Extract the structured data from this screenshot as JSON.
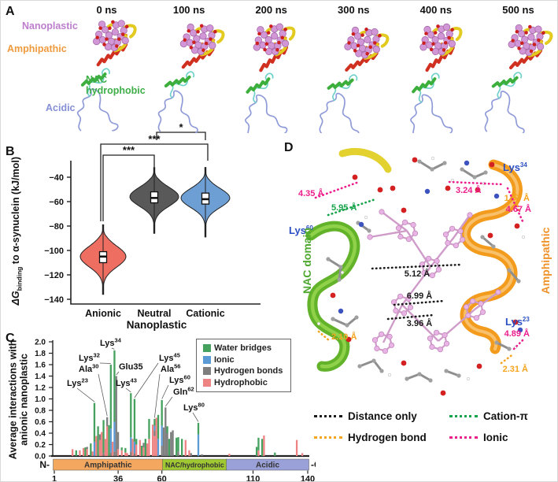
{
  "figure": {
    "panel_labels": [
      "A",
      "B",
      "C",
      "D"
    ]
  },
  "panel_a": {
    "times": [
      "0 ns",
      "100 ns",
      "200 ns",
      "300 ns",
      "400 ns",
      "500 ns"
    ],
    "region_labels": [
      {
        "text": "Nanoplastic",
        "color": "#bd7ecd"
      },
      {
        "text": "Amphipathic",
        "color": "#f09a3e"
      },
      {
        "text": "NAC hydrophobic",
        "color": "#3fae49"
      },
      {
        "text": "Acidic",
        "color": "#8590d6"
      }
    ]
  },
  "panel_b": {
    "ylabel": {
      "prefix": "ΔG",
      "sub": "binding",
      "rest": " to α-synuclein (kJ/mol)"
    },
    "xlabel": "Nanoplastic"
  },
  "panel_c": {
    "ylabel_line1": "Average interactions with",
    "ylabel_line2": "anionic nanoplastic",
    "terminus_left": "N-",
    "terminus_right": "-C"
  },
  "panel_d": {
    "residue_labels": [
      {
        "text": "Lys",
        "sup": "60"
      },
      {
        "text": "Lys",
        "sup": "34"
      },
      {
        "text": "Lys",
        "sup": "23"
      }
    ],
    "residue_label_color": "#2b4fc2",
    "domain_left": {
      "text": "NAC domain",
      "color": "#4ea82e"
    },
    "domain_right": {
      "text": "Amphipathic",
      "color": "#f0922b"
    },
    "distances": [
      {
        "label": "4.35 Å",
        "type": "ionic"
      },
      {
        "label": "5.95 Å",
        "type": "cation_pi"
      },
      {
        "label": "3.24 Å",
        "type": "ionic"
      },
      {
        "label": "1.97 Å",
        "type": "hydrogen_bond"
      },
      {
        "label": "4.67 Å",
        "type": "ionic"
      },
      {
        "label": "5.12 Å",
        "type": "distance_only"
      },
      {
        "label": "6.99 Å",
        "type": "distance_only"
      },
      {
        "label": "3.96 Å",
        "type": "distance_only"
      },
      {
        "label": "2.10 Å",
        "type": "hydrogen_bond"
      },
      {
        "label": "4.89 Å",
        "type": "ionic"
      },
      {
        "label": "2.31 Å",
        "type": "hydrogen_bond"
      }
    ],
    "type_colors": {
      "distance_only": "#1a1a1a",
      "cation_pi": "#17a34a",
      "hydrogen_bond": "#f5a41e",
      "ionic": "#ec1d8d"
    },
    "legend": [
      {
        "label": "Distance only",
        "type": "distance_only"
      },
      {
        "label": "Cation-π",
        "type": "cation_pi"
      },
      {
        "label": "Hydrogen bond",
        "type": "hydrogen_bond"
      },
      {
        "label": "Ionic",
        "type": "ionic"
      }
    ]
  },
  "chart_data": [
    {
      "type": "violin",
      "panel": "B",
      "categories": [
        "Anionic",
        "Neutral",
        "Cationic"
      ],
      "colors": [
        "#ef6e62",
        "#595959",
        "#6e9fd4"
      ],
      "ylabel": "ΔG_binding to α-synuclein (kJ/mol)",
      "xlabel": "Nanoplastic",
      "ylim": [
        -145,
        -25
      ],
      "yticks": [
        -40,
        -60,
        -80,
        -100,
        -120,
        -140
      ],
      "stats": [
        {
          "name": "Anionic",
          "median": -105,
          "q1": -110,
          "q3": -101,
          "min": -136,
          "max": -79,
          "mode": -105,
          "sigma": 12
        },
        {
          "name": "Neutral",
          "median": -57,
          "q1": -61,
          "q3": -52,
          "min": -86,
          "max": -32,
          "mode": -56,
          "sigma": 11
        },
        {
          "name": "Cationic",
          "median": -58,
          "q1": -62,
          "q3": -53,
          "min": -89,
          "max": -32,
          "mode": -57,
          "sigma": 11
        }
      ],
      "significance": [
        {
          "groups": [
            "Neutral",
            "Cationic"
          ],
          "label": "*"
        },
        {
          "groups": [
            "Anionic",
            "Cationic"
          ],
          "label": "***"
        },
        {
          "groups": [
            "Anionic",
            "Neutral"
          ],
          "label": "***"
        }
      ],
      "legend_position": "none",
      "grid": false
    },
    {
      "type": "bar",
      "panel": "C",
      "stacked": true,
      "ylabel": "Average interactions with anionic nanoplastic",
      "ylim": [
        0,
        2
      ],
      "ytick_step": 0.2,
      "xticks": [
        1,
        36,
        60,
        110,
        140
      ],
      "xrange": [
        1,
        140
      ],
      "grid": false,
      "legend": [
        {
          "label": "Water bridges",
          "key": "water_bridges",
          "color": "#45a15e"
        },
        {
          "label": "Ionic",
          "key": "ionic",
          "color": "#5b9bd5"
        },
        {
          "label": "Hydrogen bonds",
          "key": "hydrogen_bonds",
          "color": "#7f7f7f"
        },
        {
          "label": "Hydrophobic",
          "key": "hydrophobic",
          "color": "#ee8383"
        }
      ],
      "bars_format": [
        "residue",
        "hydrophobic",
        "hydrogen_bonds",
        "ionic",
        "water_bridges"
      ],
      "bars": [
        [
          11,
          0.12,
          0,
          0,
          0
        ],
        [
          13,
          0,
          0,
          0,
          0.1
        ],
        [
          15,
          0.1,
          0,
          0,
          0
        ],
        [
          17,
          0.14,
          0,
          0,
          0
        ],
        [
          18,
          0,
          0,
          0,
          0.15
        ],
        [
          19,
          0.12,
          0.04,
          0,
          0
        ],
        [
          21,
          0,
          0,
          0,
          0.22
        ],
        [
          22,
          0.08,
          0,
          0,
          0
        ],
        [
          23,
          0,
          0,
          0.25,
          0.68
        ],
        [
          24,
          0.35,
          0,
          0,
          0
        ],
        [
          25,
          0,
          0,
          0,
          0.52
        ],
        [
          26,
          0.28,
          0.1,
          0,
          0
        ],
        [
          27,
          0.42,
          0,
          0,
          0
        ],
        [
          28,
          0,
          0.05,
          0,
          0.58
        ],
        [
          29,
          0.3,
          0,
          0,
          0
        ],
        [
          30,
          0.52,
          0.16,
          0,
          0
        ],
        [
          31,
          0,
          0,
          0,
          0.54
        ],
        [
          32,
          0,
          0.06,
          0.42,
          1.12
        ],
        [
          33,
          0.25,
          0,
          0,
          0
        ],
        [
          34,
          0,
          0.08,
          0.52,
          1.25
        ],
        [
          35,
          0,
          1.4,
          0,
          0
        ],
        [
          36,
          0.12,
          0.3,
          0,
          0
        ],
        [
          38,
          0.1,
          0,
          0,
          0.05
        ],
        [
          40,
          0.06,
          0,
          0,
          0.08
        ],
        [
          41,
          0.05,
          0,
          0,
          0
        ],
        [
          43,
          0,
          0.08,
          0.25,
          0.77
        ],
        [
          44,
          0.3,
          0,
          0,
          0
        ],
        [
          45,
          0,
          0.05,
          0.2,
          0.75
        ],
        [
          46,
          0.2,
          0,
          0,
          0.1
        ],
        [
          48,
          0.28,
          0,
          0,
          0
        ],
        [
          49,
          0,
          0,
          0,
          0.18
        ],
        [
          50,
          0.15,
          0.08,
          0,
          0
        ],
        [
          51,
          0,
          0,
          0,
          0.3
        ],
        [
          52,
          0.22,
          0,
          0,
          0
        ],
        [
          53,
          0.3,
          0,
          0,
          0.35
        ],
        [
          55,
          0.55,
          0,
          0,
          0
        ],
        [
          56,
          0.35,
          0.1,
          0.08,
          0.12
        ],
        [
          57,
          0.67,
          0,
          0,
          0
        ],
        [
          58,
          0,
          0,
          0.3,
          0.42
        ],
        [
          60,
          0,
          0.18,
          0.35,
          0.45
        ],
        [
          61,
          0,
          0.5,
          0,
          0
        ],
        [
          62,
          0,
          0.85,
          0,
          0
        ],
        [
          63,
          0,
          0.4,
          0,
          0.12
        ],
        [
          64,
          0,
          0,
          0,
          0.3
        ],
        [
          65,
          0,
          0.42,
          0,
          0
        ],
        [
          66,
          0,
          0.45,
          0,
          0
        ],
        [
          68,
          0,
          0,
          0,
          0.32
        ],
        [
          69,
          0,
          0.08,
          0,
          0.25
        ],
        [
          71,
          0,
          0,
          0,
          0.3
        ],
        [
          73,
          0.28,
          0,
          0,
          0
        ],
        [
          75,
          0.1,
          0,
          0,
          0
        ],
        [
          76,
          0,
          0.05,
          0,
          0
        ],
        [
          80,
          0,
          0,
          0.38,
          0.2
        ],
        [
          82,
          0,
          0.03,
          0,
          0
        ],
        [
          97,
          0.04,
          0,
          0,
          0
        ],
        [
          112,
          0,
          0,
          0,
          0.16
        ],
        [
          113,
          0.1,
          0,
          0,
          0.22
        ],
        [
          115,
          0,
          0,
          0,
          0.3
        ],
        [
          116,
          0.36,
          0,
          0,
          0
        ],
        [
          122,
          0,
          0,
          0,
          0.06
        ],
        [
          134,
          0.28,
          0,
          0,
          0
        ],
        [
          137,
          0.05,
          0,
          0,
          0
        ]
      ],
      "annotations": [
        {
          "text": "Lys",
          "sup": "23",
          "r": 23
        },
        {
          "text": "Ala",
          "sup": "30",
          "r": 30
        },
        {
          "text": "Lys",
          "sup": "32",
          "r": 32
        },
        {
          "text": "Lys",
          "sup": "34",
          "r": 34
        },
        {
          "text": "Glu35",
          "sup": "",
          "r": 35
        },
        {
          "text": "Lys",
          "sup": "43",
          "r": 43
        },
        {
          "text": "Lys",
          "sup": "45",
          "r": 45
        },
        {
          "text": "Ala",
          "sup": "56",
          "r": 56
        },
        {
          "text": "Lys",
          "sup": "60",
          "r": 60
        },
        {
          "text": "Gln",
          "sup": "62",
          "r": 62
        },
        {
          "text": "Lys",
          "sup": "80",
          "r": 80
        }
      ],
      "domains": [
        {
          "name": "Amphipathic",
          "start": 1,
          "end": 60,
          "color": "#f4a75f"
        },
        {
          "name": "NAC/hydrophobic",
          "start": 61,
          "end": 95,
          "color": "#9fc832"
        },
        {
          "name": "Acidic",
          "start": 96,
          "end": 140,
          "color": "#9aa0d8"
        }
      ]
    }
  ]
}
